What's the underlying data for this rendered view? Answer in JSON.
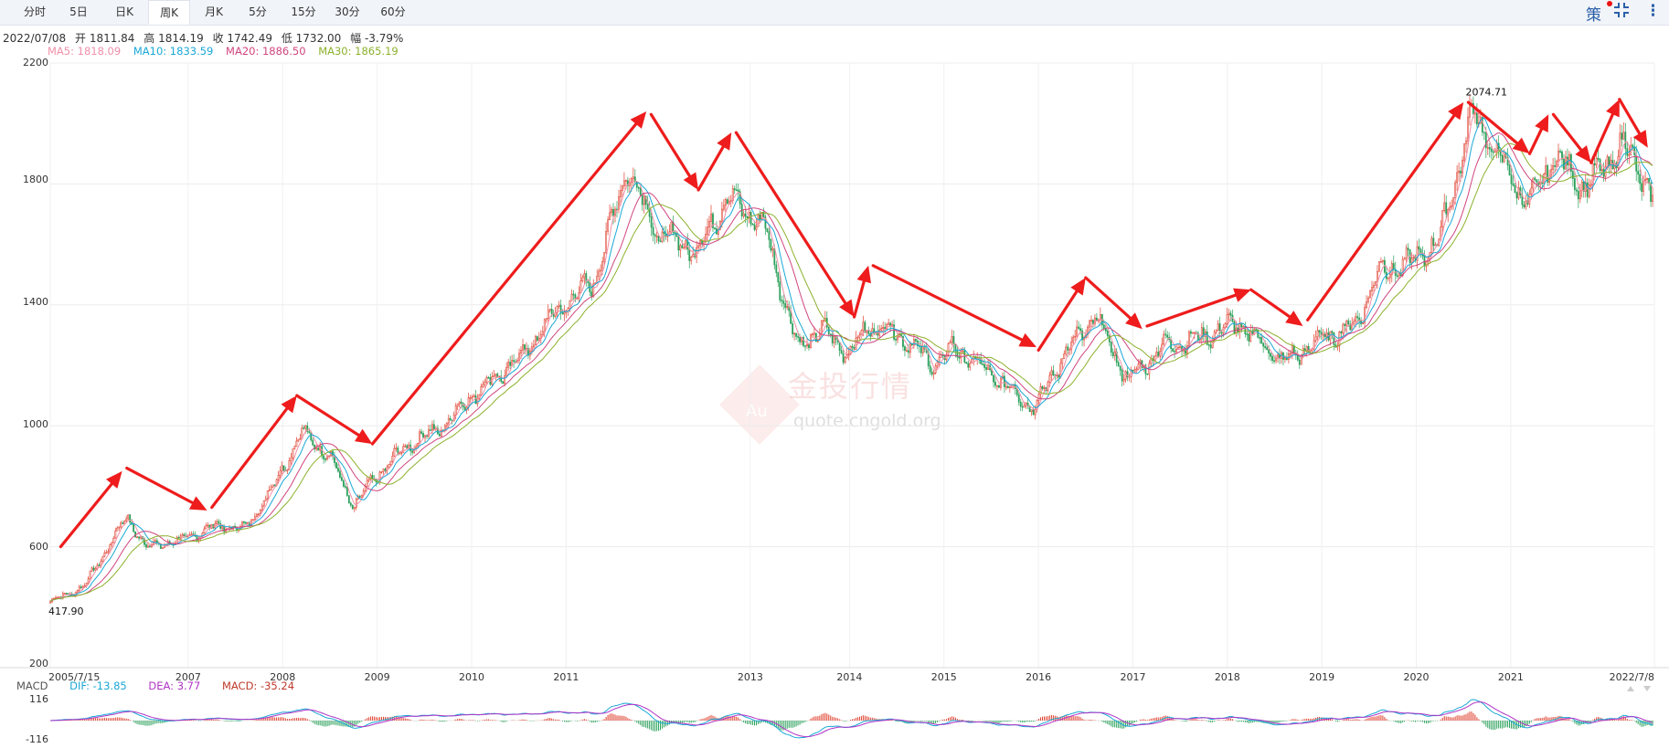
{
  "toolbar": {
    "tabs": [
      "分时",
      "5日",
      "日K",
      "周K",
      "月K",
      "5分",
      "15分",
      "30分",
      "60分"
    ],
    "active_tab": "周K",
    "icons": [
      "strategy-icon",
      "fullscreen-icon",
      "more-icon"
    ],
    "strategy_label": "策"
  },
  "info": {
    "date": "2022/07/08",
    "open": "开 1811.84",
    "high": "高 1814.19",
    "close": "收 1742.49",
    "low": "低 1732.00",
    "amplitude": "幅 -3.79%"
  },
  "ma": {
    "ma5": "MA5: 1818.09",
    "ma10": "MA10: 1833.59",
    "ma20": "MA20: 1886.50",
    "ma30": "MA30: 1865.19"
  },
  "macd": {
    "title": "MACD",
    "dif": "DIF: -13.85",
    "dea": "DEA: 3.77",
    "macd": "MACD: -35.24",
    "ymax": "116",
    "ymin": "-116"
  },
  "watermark": {
    "brand": "金投行情",
    "site": "quote.cngold.org",
    "logo": "Au"
  },
  "colors": {
    "up": "#e0412f",
    "down": "#2aa05a",
    "ma5": "#f08fa8",
    "ma10": "#1aa8d6",
    "ma20": "#d0457f",
    "ma30": "#8cb12c",
    "arrow": "#ee1c1c",
    "macd_dif": "#1aa8d6",
    "macd_dea": "#b034c6"
  },
  "chart_data": {
    "type": "candlestick",
    "period": "weekly",
    "y_ticks": [
      2200,
      1800,
      1400,
      1000,
      600,
      200
    ],
    "ylim": [
      200,
      2200
    ],
    "x_tick_labels": [
      "2005/7/15",
      "2007",
      "2008",
      "2009",
      "2010",
      "2011",
      "2013",
      "2014",
      "2015",
      "2016",
      "2017",
      "2018",
      "2019",
      "2020",
      "2021",
      "2022/7/8"
    ],
    "x_tick_years": [
      2005.54,
      2007,
      2008,
      2009,
      2010,
      2011,
      2012.95,
      2014,
      2015,
      2016,
      2017,
      2018,
      2019,
      2020,
      2021,
      2022.52
    ],
    "xlim": [
      2005.54,
      2022.52
    ],
    "annotations": [
      {
        "label": "417.90",
        "x": 2005.54,
        "y": 417.9,
        "type": "low"
      },
      {
        "label": "2074.71",
        "x": 2020.6,
        "y": 2074.71,
        "type": "high"
      }
    ],
    "price_anchors": [
      [
        2005.54,
        418
      ],
      [
        2005.9,
        470
      ],
      [
        2006.35,
        700
      ],
      [
        2006.55,
        600
      ],
      [
        2006.9,
        620
      ],
      [
        2007.3,
        670
      ],
      [
        2007.6,
        660
      ],
      [
        2007.9,
        800
      ],
      [
        2008.2,
        980
      ],
      [
        2008.5,
        900
      ],
      [
        2008.75,
        730
      ],
      [
        2008.95,
        820
      ],
      [
        2009.3,
        930
      ],
      [
        2009.7,
        1000
      ],
      [
        2010.0,
        1100
      ],
      [
        2010.5,
        1220
      ],
      [
        2010.9,
        1380
      ],
      [
        2011.3,
        1480
      ],
      [
        2011.65,
        1860
      ],
      [
        2011.95,
        1640
      ],
      [
        2012.4,
        1580
      ],
      [
        2012.7,
        1760
      ],
      [
        2013.1,
        1660
      ],
      [
        2013.45,
        1260
      ],
      [
        2013.7,
        1320
      ],
      [
        2014.0,
        1240
      ],
      [
        2014.2,
        1330
      ],
      [
        2014.5,
        1310
      ],
      [
        2014.9,
        1200
      ],
      [
        2015.1,
        1260
      ],
      [
        2015.5,
        1170
      ],
      [
        2015.95,
        1060
      ],
      [
        2016.3,
        1250
      ],
      [
        2016.6,
        1360
      ],
      [
        2016.95,
        1150
      ],
      [
        2017.3,
        1260
      ],
      [
        2017.7,
        1290
      ],
      [
        2018.1,
        1340
      ],
      [
        2018.6,
        1210
      ],
      [
        2019.0,
        1290
      ],
      [
        2019.35,
        1330
      ],
      [
        2019.6,
        1510
      ],
      [
        2019.95,
        1540
      ],
      [
        2020.25,
        1620
      ],
      [
        2020.6,
        2040
      ],
      [
        2020.9,
        1870
      ],
      [
        2021.2,
        1730
      ],
      [
        2021.45,
        1890
      ],
      [
        2021.8,
        1790
      ],
      [
        2022.2,
        1930
      ],
      [
        2022.35,
        1850
      ],
      [
        2022.52,
        1742
      ]
    ],
    "arrows": [
      [
        [
          2005.65,
          600
        ],
        [
          2006.3,
          850
        ]
      ],
      [
        [
          2006.35,
          860
        ],
        [
          2007.2,
          720
        ]
      ],
      [
        [
          2007.25,
          730
        ],
        [
          2008.15,
          1100
        ]
      ],
      [
        [
          2008.15,
          1100
        ],
        [
          2008.95,
          940
        ]
      ],
      [
        [
          2008.95,
          940
        ],
        [
          2011.85,
          2040
        ]
      ],
      [
        [
          2011.9,
          2030
        ],
        [
          2012.4,
          1780
        ]
      ],
      [
        [
          2012.4,
          1780
        ],
        [
          2012.75,
          1970
        ]
      ],
      [
        [
          2012.8,
          1970
        ],
        [
          2014.05,
          1360
        ]
      ],
      [
        [
          2014.05,
          1360
        ],
        [
          2014.2,
          1530
        ]
      ],
      [
        [
          2014.25,
          1530
        ],
        [
          2015.98,
          1260
        ]
      ],
      [
        [
          2016.0,
          1250
        ],
        [
          2016.5,
          1490
        ]
      ],
      [
        [
          2016.5,
          1490
        ],
        [
          2017.1,
          1320
        ]
      ],
      [
        [
          2017.15,
          1330
        ],
        [
          2018.25,
          1450
        ]
      ],
      [
        [
          2018.25,
          1450
        ],
        [
          2018.8,
          1330
        ]
      ],
      [
        [
          2018.85,
          1350
        ],
        [
          2020.5,
          2070
        ]
      ],
      [
        [
          2020.55,
          2070
        ],
        [
          2021.2,
          1900
        ]
      ],
      [
        [
          2021.2,
          1900
        ],
        [
          2021.4,
          2030
        ]
      ],
      [
        [
          2021.45,
          2030
        ],
        [
          2021.85,
          1870
        ]
      ],
      [
        [
          2021.85,
          1870
        ],
        [
          2022.15,
          2080
        ]
      ],
      [
        [
          2022.15,
          2080
        ],
        [
          2022.45,
          1920
        ]
      ]
    ]
  }
}
